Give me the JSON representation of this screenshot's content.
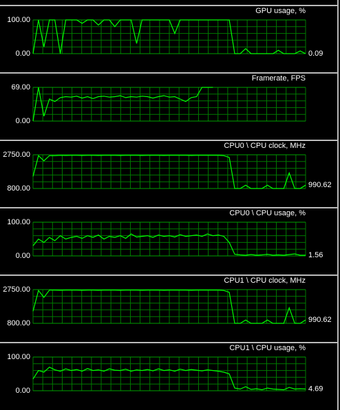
{
  "chart_data": [
    {
      "type": "line",
      "title": "GPU usage, %",
      "color": "#00ff00",
      "ylim": [
        0,
        100
      ],
      "yticks": [
        {
          "value": 0,
          "label": "0.00"
        },
        {
          "value": 100,
          "label": "100.00"
        }
      ],
      "current_value": 0.09,
      "values": [
        0,
        100,
        20,
        100,
        100,
        0,
        100,
        100,
        100,
        90,
        100,
        100,
        85,
        100,
        100,
        80,
        100,
        100,
        100,
        30,
        100,
        100,
        100,
        100,
        100,
        100,
        60,
        100,
        100,
        100,
        100,
        100,
        100,
        100,
        100,
        100,
        100,
        0,
        0,
        15,
        0,
        0,
        0,
        0,
        0,
        10,
        0,
        0,
        0,
        8,
        0
      ]
    },
    {
      "type": "line",
      "title": "Framerate, FPS",
      "color": "#00ff00",
      "ylim": [
        0,
        69
      ],
      "yticks": [
        {
          "value": 0,
          "label": "0.00"
        },
        {
          "value": 69,
          "label": "69.00"
        }
      ],
      "current_value": null,
      "values": [
        0,
        69,
        10,
        45,
        40,
        48,
        50,
        49,
        51,
        47,
        50,
        46,
        50,
        51,
        49,
        50,
        52,
        48,
        50,
        49,
        51,
        50,
        47,
        50,
        52,
        49,
        50,
        45,
        40,
        48,
        50,
        69,
        69,
        69,
        null,
        null,
        null,
        null,
        null,
        null,
        null,
        null,
        null,
        null,
        null,
        null,
        null,
        null,
        null,
        null,
        null
      ]
    },
    {
      "type": "line",
      "title": "CPU0 \\ CPU clock, MHz",
      "color": "#00ff00",
      "ylim": [
        800,
        2750
      ],
      "yticks": [
        {
          "value": 800,
          "label": "800.00"
        },
        {
          "value": 2750,
          "label": "2750.00"
        }
      ],
      "current_value": 990.62,
      "values": [
        1500,
        2700,
        2400,
        2700,
        2700,
        2720,
        2710,
        2720,
        2720,
        2710,
        2720,
        2720,
        2710,
        2720,
        2720,
        2720,
        2710,
        2720,
        2720,
        2720,
        2710,
        2720,
        2720,
        2720,
        2710,
        2720,
        2720,
        2720,
        2720,
        2710,
        2720,
        2720,
        2720,
        2720,
        2720,
        2700,
        2600,
        800,
        800,
        990,
        800,
        800,
        800,
        990,
        800,
        800,
        800,
        1700,
        800,
        800,
        990
      ]
    },
    {
      "type": "line",
      "title": "CPU0 \\ CPU usage, %",
      "color": "#00ff00",
      "ylim": [
        0,
        100
      ],
      "yticks": [
        {
          "value": 0,
          "label": "0.00"
        },
        {
          "value": 100,
          "label": "100.00"
        }
      ],
      "current_value": 1.56,
      "values": [
        30,
        50,
        40,
        55,
        45,
        60,
        50,
        55,
        58,
        52,
        60,
        55,
        62,
        50,
        58,
        55,
        60,
        52,
        65,
        56,
        58,
        60,
        55,
        62,
        58,
        60,
        56,
        63,
        58,
        60,
        62,
        58,
        65,
        60,
        62,
        58,
        40,
        5,
        3,
        2,
        4,
        2,
        3,
        5,
        2,
        3,
        2,
        4,
        6,
        2,
        2
      ]
    },
    {
      "type": "line",
      "title": "CPU1 \\ CPU clock, MHz",
      "color": "#00ff00",
      "ylim": [
        800,
        2750
      ],
      "yticks": [
        {
          "value": 800,
          "label": "800.00"
        },
        {
          "value": 2750,
          "label": "2750.00"
        }
      ],
      "current_value": 990.62,
      "values": [
        1500,
        2700,
        2300,
        2720,
        2720,
        2710,
        2720,
        2720,
        2720,
        2710,
        2720,
        2720,
        2710,
        2720,
        2720,
        2720,
        2710,
        2720,
        2720,
        2720,
        2710,
        2720,
        2720,
        2720,
        2710,
        2720,
        2720,
        2720,
        2720,
        2710,
        2720,
        2720,
        2720,
        2720,
        2720,
        2700,
        2600,
        800,
        800,
        990,
        800,
        800,
        800,
        990,
        800,
        800,
        800,
        1700,
        800,
        800,
        990
      ]
    },
    {
      "type": "line",
      "title": "CPU1 \\ CPU usage, %",
      "color": "#00ff00",
      "ylim": [
        0,
        100
      ],
      "yticks": [
        {
          "value": 0,
          "label": "0.00"
        },
        {
          "value": 100,
          "label": "100.00"
        }
      ],
      "current_value": 4.69,
      "values": [
        35,
        60,
        55,
        70,
        62,
        58,
        65,
        60,
        63,
        58,
        66,
        60,
        62,
        58,
        65,
        61,
        60,
        64,
        58,
        62,
        60,
        63,
        59,
        65,
        60,
        62,
        58,
        64,
        60,
        63,
        61,
        59,
        62,
        60,
        58,
        55,
        50,
        8,
        5,
        12,
        4,
        6,
        3,
        8,
        5,
        4,
        3,
        10,
        5,
        6,
        5
      ]
    }
  ]
}
